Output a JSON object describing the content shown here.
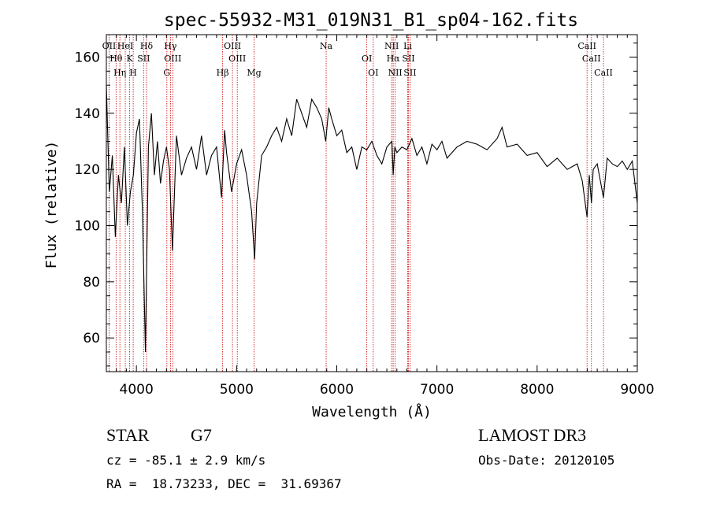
{
  "chart_data": {
    "type": "line",
    "title": "spec-55932-M31_019N31_B1_sp04-162.fits",
    "xlabel": "Wavelength (Å)",
    "ylabel": "Flux (relative)",
    "xlim": [
      3700,
      9000
    ],
    "ylim": [
      48,
      168
    ],
    "x_ticks": [
      4000,
      5000,
      6000,
      7000,
      8000,
      9000
    ],
    "y_ticks": [
      60,
      80,
      100,
      120,
      140,
      160
    ],
    "line_color": "#000000",
    "marker_color": "#cc0000",
    "series": [
      {
        "x": [
          3700,
          3730,
          3760,
          3790,
          3820,
          3850,
          3880,
          3910,
          3940,
          3970,
          4000,
          4030,
          4060,
          4090,
          4120,
          4150,
          4180,
          4210,
          4240,
          4270,
          4300,
          4330,
          4360,
          4400,
          4450,
          4500,
          4550,
          4600,
          4650,
          4700,
          4750,
          4800,
          4850,
          4880,
          4900,
          4950,
          5000,
          5050,
          5100,
          5150,
          5180,
          5200,
          5250,
          5300,
          5350,
          5400,
          5450,
          5500,
          5550,
          5600,
          5650,
          5700,
          5750,
          5800,
          5850,
          5890,
          5920,
          5950,
          6000,
          6050,
          6100,
          6150,
          6200,
          6250,
          6300,
          6350,
          6400,
          6450,
          6500,
          6550,
          6563,
          6580,
          6600,
          6650,
          6700,
          6750,
          6800,
          6850,
          6900,
          6950,
          7000,
          7050,
          7100,
          7200,
          7300,
          7400,
          7500,
          7600,
          7650,
          7700,
          7800,
          7900,
          8000,
          8100,
          8200,
          8300,
          8400,
          8450,
          8498,
          8520,
          8542,
          8560,
          8600,
          8662,
          8700,
          8750,
          8800,
          8850,
          8900,
          8950,
          9000
        ],
        "y": [
          150,
          112,
          125,
          96,
          118,
          108,
          128,
          100,
          112,
          118,
          133,
          138,
          105,
          55,
          128,
          140,
          118,
          130,
          115,
          123,
          128,
          120,
          91,
          132,
          118,
          124,
          128,
          120,
          132,
          118,
          125,
          128,
          110,
          134,
          126,
          112,
          122,
          127,
          118,
          105,
          88,
          108,
          125,
          128,
          132,
          135,
          130,
          138,
          132,
          145,
          140,
          135,
          145,
          142,
          138,
          130,
          142,
          138,
          132,
          134,
          126,
          128,
          120,
          128,
          127,
          130,
          125,
          122,
          128,
          130,
          118,
          128,
          126,
          128,
          127,
          131,
          125,
          128,
          122,
          129,
          127,
          130,
          124,
          128,
          130,
          129,
          127,
          131,
          135,
          128,
          129,
          125,
          126,
          121,
          124,
          120,
          122,
          116,
          103,
          118,
          108,
          120,
          122,
          110,
          124,
          122,
          121,
          123,
          120,
          123,
          108
        ]
      }
    ],
    "lines": [
      {
        "name": "OII",
        "wave": 3727
      },
      {
        "name": "Hθ",
        "wave": 3797
      },
      {
        "name": "Hη",
        "wave": 3835
      },
      {
        "name": "HeI",
        "wave": 3889
      },
      {
        "name": "K",
        "wave": 3933
      },
      {
        "name": "H",
        "wave": 3968
      },
      {
        "name": "Hδ",
        "wave": 4101
      },
      {
        "name": "SII",
        "wave": 4072
      },
      {
        "name": "G",
        "wave": 4304
      },
      {
        "name": "Hγ",
        "wave": 4340
      },
      {
        "name": "OIII",
        "wave": 4363
      },
      {
        "name": "Hβ",
        "wave": 4861
      },
      {
        "name": "OIII",
        "wave": 4959
      },
      {
        "name": "OIII",
        "wave": 5007
      },
      {
        "name": "Mg",
        "wave": 5175
      },
      {
        "name": "Na",
        "wave": 5894
      },
      {
        "name": "OI",
        "wave": 6300
      },
      {
        "name": "OI",
        "wave": 6364
      },
      {
        "name": "NII",
        "wave": 6548
      },
      {
        "name": "Hα",
        "wave": 6563
      },
      {
        "name": "NII",
        "wave": 6583
      },
      {
        "name": "Li",
        "wave": 6708
      },
      {
        "name": "SII",
        "wave": 6716
      },
      {
        "name": "SII",
        "wave": 6731
      },
      {
        "name": "CaII",
        "wave": 8498
      },
      {
        "name": "CaII",
        "wave": 8542
      },
      {
        "name": "CaII",
        "wave": 8662
      }
    ]
  },
  "info": {
    "class": "STAR",
    "subclass": "G7",
    "survey": "LAMOST DR3",
    "cz": "cz = -85.1 ± 2.9 km/s",
    "obs_date": "Obs-Date: 20120105",
    "coords": "RA =  18.73233, DEC =  31.69367"
  }
}
